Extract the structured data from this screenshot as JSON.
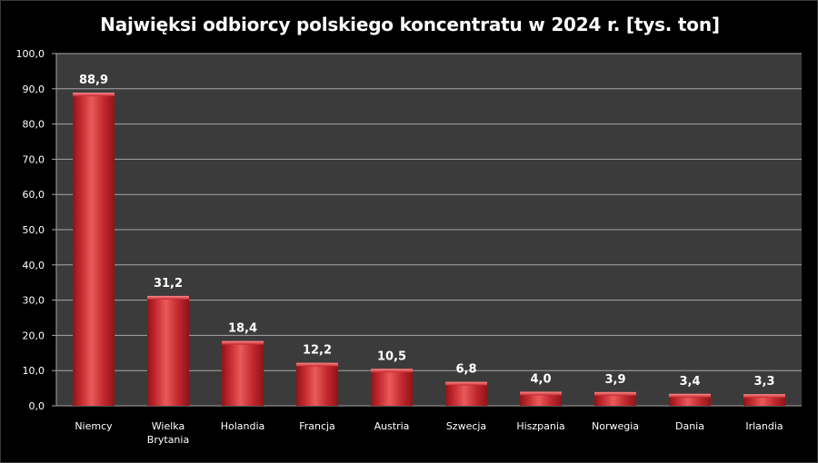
{
  "chart_data": {
    "type": "bar",
    "title": "Najwięksi odbiorcy polskiego koncentratu w 2024 r. [tys. ton]",
    "xlabel": "",
    "ylabel": "",
    "categories": [
      "Niemcy",
      "Wielka Brytania",
      "Holandia",
      "Francja",
      "Austria",
      "Szwecja",
      "Hiszpania",
      "Norwegia",
      "Dania",
      "Irlandia"
    ],
    "category_lines": [
      [
        "Niemcy"
      ],
      [
        "Wielka",
        "Brytania"
      ],
      [
        "Holandia"
      ],
      [
        "Francja"
      ],
      [
        "Austria"
      ],
      [
        "Szwecja"
      ],
      [
        "Hiszpania"
      ],
      [
        "Norwegia"
      ],
      [
        "Dania"
      ],
      [
        "Irlandia"
      ]
    ],
    "values": [
      88.9,
      31.2,
      18.4,
      12.2,
      10.5,
      6.8,
      4.0,
      3.9,
      3.4,
      3.3
    ],
    "value_labels": [
      "88,9",
      "31,2",
      "18,4",
      "12,2",
      "10,5",
      "6,8",
      "4,0",
      "3,9",
      "3,4",
      "3,3"
    ],
    "ylim": [
      0,
      100
    ],
    "yticks": [
      "0,0",
      "10,0",
      "20,0",
      "30,0",
      "40,0",
      "50,0",
      "60,0",
      "70,0",
      "80,0",
      "90,0",
      "100,0"
    ],
    "grid": true,
    "legend": "none",
    "colors": {
      "plot_background": "#3b3b3b",
      "gridline": "#a6a6a6",
      "bar": "#c0272d",
      "bar_highlight": "#ea5a5a",
      "bar_dark": "#8e1518",
      "text": "#ffffff"
    }
  }
}
